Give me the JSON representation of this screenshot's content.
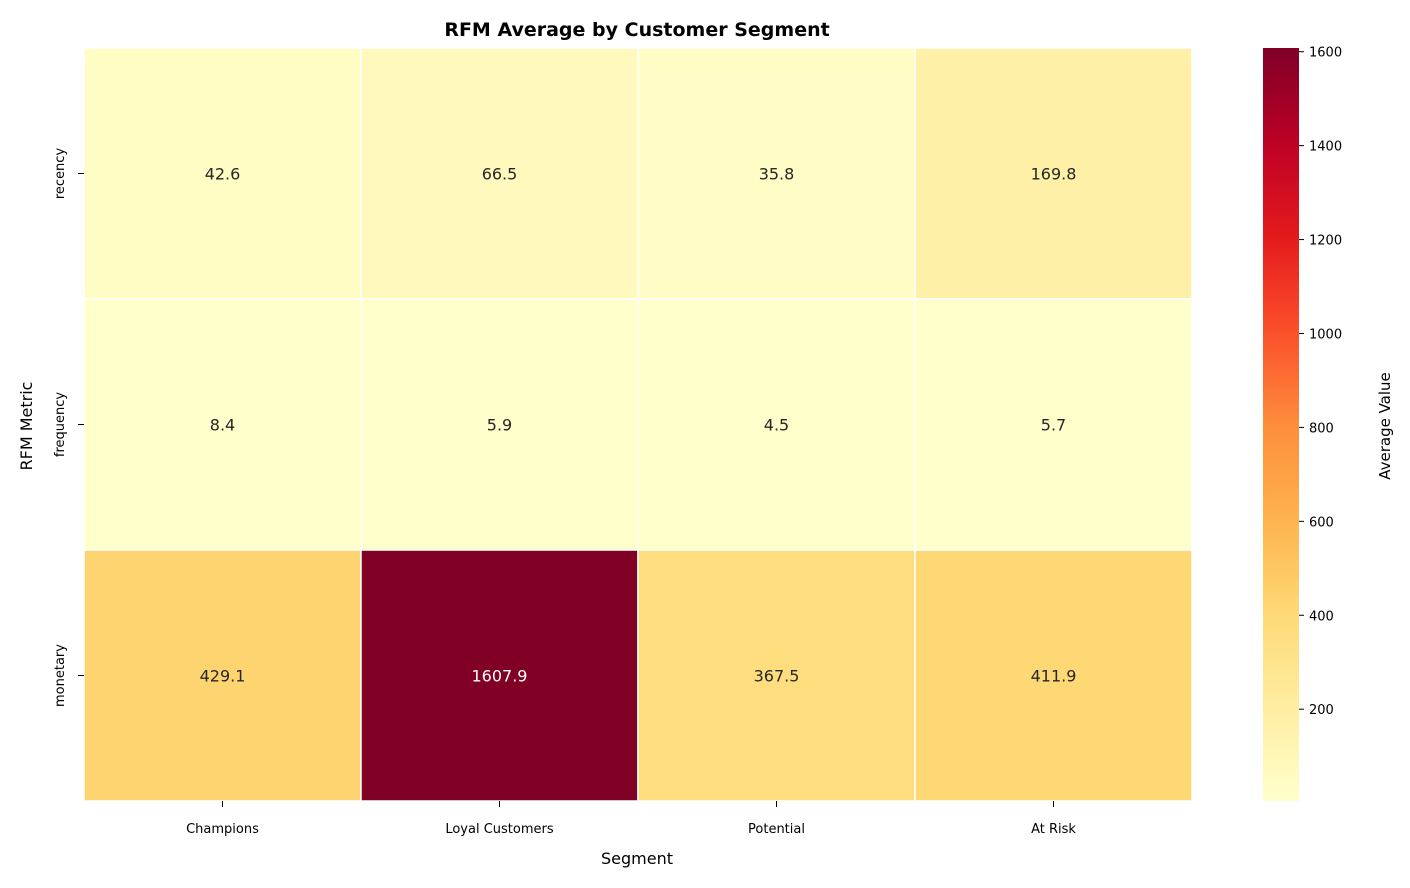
{
  "chart_data": {
    "type": "heatmap",
    "title": "RFM Average by Customer Segment",
    "xlabel": "Segment",
    "ylabel": "RFM Metric",
    "x_categories": [
      "Champions",
      "Loyal Customers",
      "Potential",
      "At Risk"
    ],
    "y_categories": [
      "recency",
      "frequency",
      "monetary"
    ],
    "values": [
      [
        42.6,
        66.5,
        35.8,
        169.8
      ],
      [
        8.4,
        5.9,
        4.5,
        5.7
      ],
      [
        429.1,
        1607.9,
        367.5,
        411.9
      ]
    ],
    "value_labels": [
      [
        "42.6",
        "66.5",
        "35.8",
        "169.8"
      ],
      [
        "8.4",
        "5.9",
        "4.5",
        "5.7"
      ],
      [
        "429.1",
        "1607.9",
        "367.5",
        "411.9"
      ]
    ],
    "colormap": "YlOrRd",
    "colorbar": {
      "label": "Average Value",
      "range": [
        4.5,
        1607.9
      ],
      "ticks": [
        200,
        400,
        600,
        800,
        1000,
        1200,
        1400,
        1600
      ],
      "tick_labels": [
        "200",
        "400",
        "600",
        "800",
        "1000",
        "1200",
        "1400",
        "1600"
      ]
    },
    "cell_border_color": "#ffffff",
    "text_color_light": "#262626",
    "text_color_dark": "#ffffff"
  }
}
